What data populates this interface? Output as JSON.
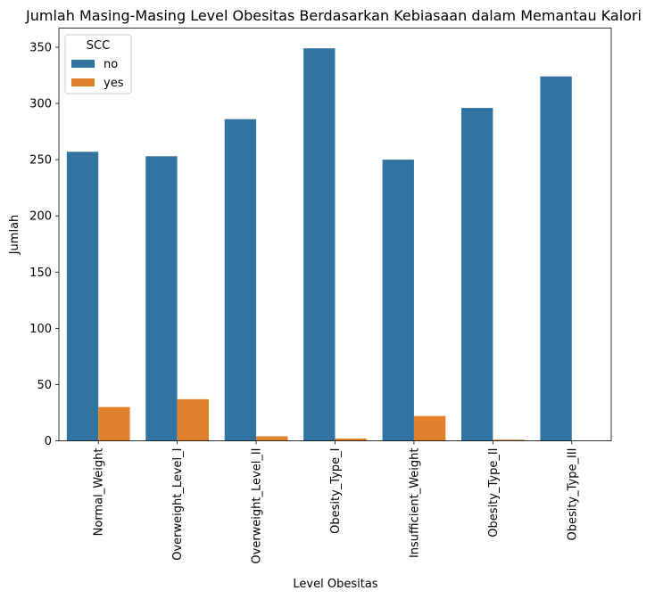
{
  "chart_data": {
    "type": "bar",
    "title": "Jumlah Masing-Masing Level Obesitas Berdasarkan Kebiasaan dalam Memantau Kalori",
    "xlabel": "Level Obesitas",
    "ylabel": "Jumlah",
    "categories": [
      "Normal_Weight",
      "Overweight_Level_I",
      "Overweight_Level_II",
      "Obesity_Type_I",
      "Insufficient_Weight",
      "Obesity_Type_II",
      "Obesity_Type_III"
    ],
    "series": [
      {
        "name": "no",
        "color": "#3274a1",
        "values": [
          257,
          253,
          286,
          349,
          250,
          296,
          324
        ]
      },
      {
        "name": "yes",
        "color": "#e1812c",
        "values": [
          30,
          37,
          4,
          2,
          22,
          1,
          0
        ]
      }
    ],
    "ylim": [
      0,
      367
    ],
    "yticks": [
      0,
      50,
      100,
      150,
      200,
      250,
      300,
      350
    ],
    "grid": false,
    "legend": {
      "title": "SCC",
      "placement": "top-left"
    }
  }
}
